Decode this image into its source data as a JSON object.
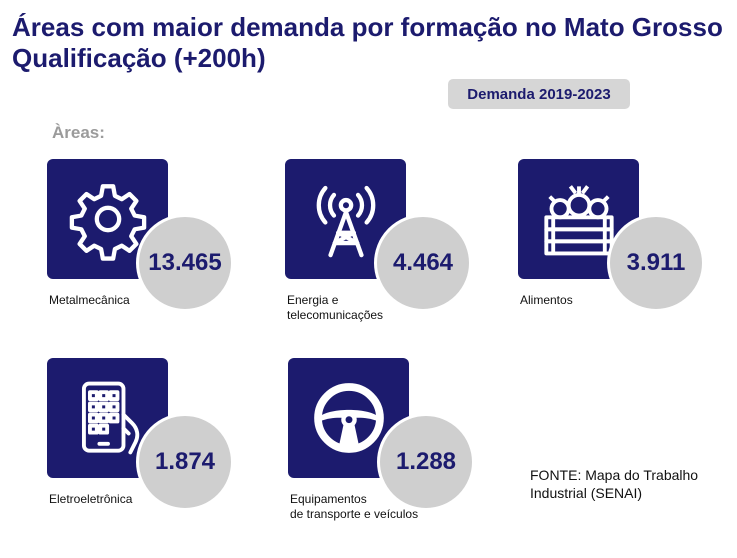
{
  "chart_data": {
    "type": "table",
    "title": "Áreas com maior demanda por formação no Mato Grosso Qualificação (+200h)",
    "period": "Demanda 2019-2023",
    "section_label": "Àreas:",
    "categories": [
      "Metalmecânica",
      "Energia e telecomunicações",
      "Alimentos",
      "Eletroeletrônica",
      "Equipamentos de transporte e veículos"
    ],
    "values": [
      13465,
      4464,
      3911,
      1874,
      1288
    ],
    "items": [
      {
        "label": "Metalmecânica",
        "value_text": "13.465",
        "icon": "gear-icon"
      },
      {
        "label": "Energia e\ntelecomunicações",
        "value_text": "4.464",
        "icon": "antenna-tower-icon"
      },
      {
        "label": "Alimentos",
        "value_text": "3.911",
        "icon": "vegetable-crate-icon"
      },
      {
        "label": "Eletroeletrônica",
        "value_text": "1.874",
        "icon": "smartphone-hand-icon"
      },
      {
        "label": "Equipamentos\nde transporte e veículos",
        "value_text": "1.288",
        "icon": "steering-wheel-icon"
      }
    ],
    "source": "FONTE: Mapa do Trabalho Industrial (SENAI)"
  },
  "colors": {
    "primary": "#1c1b6e",
    "bubble": "#cfcfcf",
    "badge": "#d6d6d6",
    "muted_label": "#9b9b9b"
  }
}
